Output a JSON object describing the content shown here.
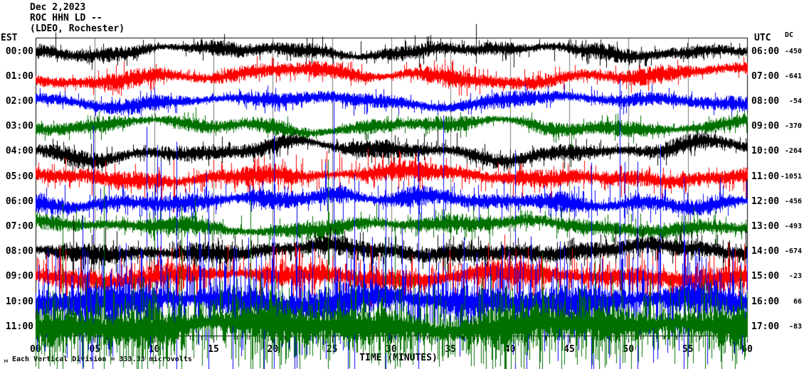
{
  "header": {
    "date": "Dec 2,2023",
    "station": "ROC HHN LD --",
    "network": "(LDEO, Rochester)"
  },
  "axes": {
    "left_label": "EST",
    "right_label": "UTC",
    "dc_label": "DC",
    "x_label": "TIME (MINUTES)",
    "x_ticks": [
      "00",
      "05",
      "10",
      "15",
      "20",
      "25",
      "30",
      "35",
      "40",
      "45",
      "50",
      "55",
      "60"
    ]
  },
  "footer": {
    "scale_note": "Each Vertical Division = 333.33 microvolts",
    "corner_mark": "м"
  },
  "chart_data": {
    "type": "line",
    "kind": "helicorder-seismogram",
    "title": "ROC HHN LD -- (LDEO, Rochester) Dec 2,2023",
    "xlabel": "TIME (MINUTES)",
    "x_axis": {
      "min": 0,
      "max": 60,
      "major_tick_minutes": 5,
      "minor_tick_minutes": 1
    },
    "grid": true,
    "grid_color": "#787878",
    "frame_color": "#000000",
    "vertical_division_microvolts": 333.33,
    "note": "Continuous seismic noise traces; one row per hour, waveform synthesized from per-row envelope parameters read from the image.",
    "colors": {
      "black": "#000000",
      "red": "#ff0000",
      "blue": "#0000ff",
      "green": "#007000"
    },
    "rows": [
      {
        "est": "00:00",
        "utc": "06:00",
        "dc": "-450",
        "color": "#000000",
        "seed": 101,
        "noise_amp": 9,
        "wander_amp": 9,
        "spike_prob": 0.015,
        "spike_amp": 26,
        "spike_down_bias": 0.5,
        "mega_prob": 0.004,
        "mega_amp": 34,
        "mega_up_bias": 0.9
      },
      {
        "est": "01:00",
        "utc": "07:00",
        "dc": "-641",
        "color": "#ff0000",
        "seed": 202,
        "noise_amp": 10,
        "wander_amp": 13,
        "spike_prob": 0.02,
        "spike_amp": 26,
        "spike_down_bias": 0.5,
        "mega_prob": 0.0,
        "mega_amp": 0,
        "mega_up_bias": 0.5
      },
      {
        "est": "02:00",
        "utc": "08:00",
        "dc": "-54",
        "color": "#0000ff",
        "seed": 303,
        "noise_amp": 9,
        "wander_amp": 10,
        "spike_prob": 0.015,
        "spike_amp": 22,
        "spike_down_bias": 0.5,
        "mega_prob": 0.0,
        "mega_amp": 0,
        "mega_up_bias": 0.5
      },
      {
        "est": "03:00",
        "utc": "09:00",
        "dc": "-370",
        "color": "#007000",
        "seed": 404,
        "noise_amp": 9,
        "wander_amp": 11,
        "spike_prob": 0.015,
        "spike_amp": 22,
        "spike_down_bias": 0.5,
        "mega_prob": 0.0,
        "mega_amp": 0,
        "mega_up_bias": 0.5
      },
      {
        "est": "04:00",
        "utc": "10:00",
        "dc": "-264",
        "color": "#000000",
        "seed": 505,
        "noise_amp": 10,
        "wander_amp": 15,
        "spike_prob": 0.015,
        "spike_amp": 24,
        "spike_down_bias": 0.5,
        "mega_prob": 0.0,
        "mega_amp": 0,
        "mega_up_bias": 0.5
      },
      {
        "est": "05:00",
        "utc": "11:00",
        "dc": "-1051",
        "color": "#ff0000",
        "seed": 606,
        "noise_amp": 11,
        "wander_amp": 9,
        "spike_prob": 0.1,
        "spike_amp": 30,
        "spike_down_bias": 0.5,
        "mega_prob": 0.002,
        "mega_amp": 60,
        "mega_up_bias": 0.5
      },
      {
        "est": "06:00",
        "utc": "12:00",
        "dc": "-456",
        "color": "#0000ff",
        "seed": 707,
        "noise_amp": 11,
        "wander_amp": 10,
        "spike_prob": 0.07,
        "spike_amp": 45,
        "spike_down_bias": 0.5,
        "mega_prob": 0.009,
        "mega_amp": 260,
        "mega_up_bias": 0.5
      },
      {
        "est": "07:00",
        "utc": "13:00",
        "dc": "-493",
        "color": "#007000",
        "seed": 808,
        "noise_amp": 10,
        "wander_amp": 10,
        "spike_prob": 0.05,
        "spike_amp": 30,
        "spike_down_bias": 0.5,
        "mega_prob": 0.003,
        "mega_amp": 90,
        "mega_up_bias": 0.5
      },
      {
        "est": "08:00",
        "utc": "14:00",
        "dc": "-674",
        "color": "#000000",
        "seed": 909,
        "noise_amp": 12,
        "wander_amp": 9,
        "spike_prob": 0.08,
        "spike_amp": 30,
        "spike_down_bias": 0.5,
        "mega_prob": 0.002,
        "mega_amp": 60,
        "mega_up_bias": 0.5
      },
      {
        "est": "09:00",
        "utc": "15:00",
        "dc": "-23",
        "color": "#ff0000",
        "seed": 111,
        "noise_amp": 13,
        "wander_amp": 8,
        "spike_prob": 0.3,
        "spike_amp": 38,
        "spike_down_bias": 0.55,
        "mega_prob": 0.004,
        "mega_amp": 80,
        "mega_up_bias": 0.5
      },
      {
        "est": "10:00",
        "utc": "16:00",
        "dc": "66",
        "color": "#0000ff",
        "seed": 222,
        "noise_amp": 20,
        "wander_amp": 8,
        "spike_prob": 0.45,
        "spike_amp": 95,
        "spike_down_bias": 0.55,
        "mega_prob": 0.012,
        "mega_amp": 320,
        "mega_up_bias": 0.75
      },
      {
        "est": "11:00",
        "utc": "17:00",
        "dc": "-83",
        "color": "#007000",
        "seed": 333,
        "noise_amp": 24,
        "wander_amp": 8,
        "spike_prob": 0.5,
        "spike_amp": 65,
        "spike_down_bias": 0.55,
        "mega_prob": 0.01,
        "mega_amp": 260,
        "mega_up_bias": 0.8
      }
    ]
  }
}
